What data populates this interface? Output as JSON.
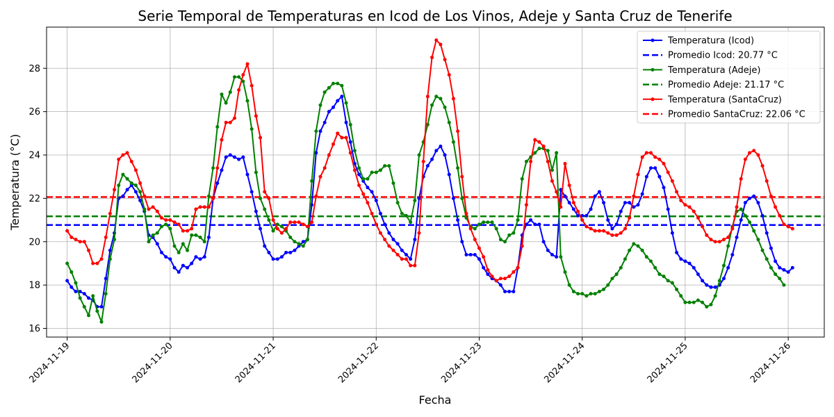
{
  "chart_data": {
    "type": "line",
    "title": "Serie Temporal de Temperaturas en Icod de Los Vinos, Adeje y Santa Cruz de Tenerife",
    "xlabel": "Fecha",
    "ylabel": "Temperatura (°C)",
    "x_tick_labels": [
      "2024-11-19",
      "2024-11-20",
      "2024-11-21",
      "2024-11-22",
      "2024-11-23",
      "2024-11-24",
      "2024-11-25",
      "2024-11-26"
    ],
    "y_ticks": [
      16,
      18,
      20,
      22,
      24,
      26,
      28
    ],
    "xlim": [
      "2024-11-18T19:12",
      "2024-11-26T08:24"
    ],
    "ylim": [
      15.6,
      29.9
    ],
    "grid": true,
    "legend_position": "top-right",
    "legend_entries": [
      "Temperatura (Icod)",
      "Promedio Icod: 20.77 °C",
      "Temperatura (Adeje)",
      "Promedio Adeje: 21.17 °C",
      "Temperatura (SantaCruz)",
      "Promedio SantaCruz: 22.06 °C"
    ],
    "series": [
      {
        "name": "Temperatura (Icod)",
        "color": "#0000ff",
        "start": "2024-11-19T00:00",
        "interval_hours": 1,
        "values": [
          18.2,
          17.9,
          17.7,
          17.7,
          17.6,
          17.4,
          17.3,
          17.0,
          17.0,
          18.3,
          19.6,
          20.4,
          22.0,
          22.1,
          22.4,
          22.6,
          22.3,
          21.9,
          21.4,
          20.3,
          20.2,
          19.9,
          19.5,
          19.3,
          19.2,
          18.8,
          18.6,
          18.9,
          18.8,
          19.0,
          19.3,
          19.2,
          19.3,
          20.2,
          22.0,
          22.7,
          23.3,
          23.9,
          24.0,
          23.9,
          23.8,
          23.9,
          23.1,
          22.3,
          21.4,
          20.6,
          19.8,
          19.5,
          19.2,
          19.2,
          19.3,
          19.5,
          19.5,
          19.6,
          19.8,
          20.0,
          20.1,
          21.7,
          24.1,
          25.1,
          25.5,
          26.0,
          26.2,
          26.5,
          26.7,
          25.5,
          24.6,
          23.6,
          23.1,
          22.8,
          22.5,
          22.3,
          21.9,
          21.3,
          20.8,
          20.4,
          20.1,
          19.9,
          19.6,
          19.4,
          19.2,
          20.1,
          22.0,
          23.0,
          23.5,
          23.8,
          24.2,
          24.4,
          24.0,
          23.1,
          22.0,
          21.0,
          20.0,
          19.4,
          19.4,
          19.4,
          19.2,
          18.8,
          18.5,
          18.3,
          18.2,
          18.0,
          17.7,
          17.7,
          17.7,
          18.8,
          20.3,
          20.8,
          21.0,
          20.8,
          20.8,
          20.0,
          19.6,
          19.4,
          19.3,
          22.4,
          22.1,
          21.8,
          21.5,
          21.2,
          21.2,
          21.2,
          21.5,
          22.1,
          22.3,
          21.8,
          21.0,
          20.6,
          20.8,
          21.4,
          21.8,
          21.8,
          21.6,
          21.7,
          22.2,
          23.0,
          23.4,
          23.4,
          23.0,
          22.5,
          21.5,
          20.4,
          19.5,
          19.2,
          19.1,
          19.0,
          18.8,
          18.5,
          18.2,
          18.0,
          17.9,
          17.9,
          18.0,
          18.3,
          18.8,
          19.4,
          20.2,
          21.0,
          21.8,
          22.0,
          22.1,
          21.8,
          21.2,
          20.4,
          19.7,
          19.1,
          18.8,
          18.7,
          18.6,
          18.8
        ]
      },
      {
        "name": "Temperatura (Adeje)",
        "color": "#008000",
        "start": "2024-11-19T00:00",
        "interval_hours": 1,
        "values": [
          19.0,
          18.6,
          18.1,
          17.4,
          17.0,
          16.6,
          17.5,
          16.8,
          16.3,
          17.6,
          19.2,
          20.1,
          22.6,
          23.1,
          22.9,
          22.7,
          22.6,
          22.3,
          21.5,
          20.0,
          20.3,
          20.4,
          20.7,
          20.8,
          20.6,
          19.8,
          19.5,
          19.9,
          19.6,
          20.3,
          20.3,
          20.2,
          20.0,
          22.1,
          23.4,
          25.3,
          26.8,
          26.4,
          26.9,
          27.6,
          27.6,
          27.4,
          26.5,
          25.2,
          23.2,
          22.0,
          21.5,
          21.0,
          20.5,
          20.8,
          20.7,
          20.5,
          20.2,
          20.0,
          19.9,
          19.8,
          20.1,
          22.8,
          25.1,
          26.3,
          26.9,
          27.1,
          27.3,
          27.3,
          27.2,
          26.4,
          25.4,
          24.2,
          23.4,
          22.9,
          22.9,
          23.2,
          23.2,
          23.3,
          23.5,
          23.5,
          22.7,
          21.8,
          21.3,
          21.2,
          20.9,
          21.9,
          24.0,
          24.6,
          25.4,
          26.3,
          26.7,
          26.6,
          26.2,
          25.5,
          24.6,
          23.4,
          22.0,
          21.1,
          20.7,
          20.6,
          20.8,
          20.9,
          20.9,
          20.9,
          20.6,
          20.1,
          20.0,
          20.3,
          20.4,
          21.0,
          22.9,
          23.7,
          23.9,
          24.1,
          24.3,
          24.3,
          24.2,
          23.3,
          24.1,
          19.3,
          18.6,
          18.0,
          17.7,
          17.6,
          17.6,
          17.5,
          17.6,
          17.6,
          17.7,
          17.8,
          18.0,
          18.3,
          18.5,
          18.8,
          19.2,
          19.6,
          19.9,
          19.8,
          19.6,
          19.3,
          19.1,
          18.8,
          18.5,
          18.4,
          18.2,
          18.1,
          17.8,
          17.5,
          17.2,
          17.2,
          17.2,
          17.3,
          17.2,
          17.0,
          17.1,
          17.5,
          18.2,
          18.9,
          19.8,
          20.7,
          21.4,
          21.5,
          21.2,
          20.9,
          20.5,
          20.1,
          19.6,
          19.2,
          18.8,
          18.5,
          18.3,
          18.0
        ]
      },
      {
        "name": "Temperatura (SantaCruz)",
        "color": "#ff0000",
        "start": "2024-11-19T00:00",
        "interval_hours": 1,
        "values": [
          20.5,
          20.2,
          20.1,
          20.0,
          20.0,
          19.6,
          19.0,
          19.0,
          19.2,
          20.2,
          21.3,
          22.4,
          23.8,
          24.0,
          24.1,
          23.7,
          23.3,
          22.7,
          22.1,
          21.5,
          21.6,
          21.4,
          21.1,
          21.0,
          21.0,
          20.9,
          20.8,
          20.5,
          20.5,
          20.6,
          21.5,
          21.6,
          21.6,
          21.6,
          22.0,
          23.4,
          24.7,
          25.5,
          25.5,
          25.7,
          27.0,
          27.7,
          28.2,
          27.2,
          25.8,
          24.8,
          22.3,
          22.0,
          21.0,
          20.6,
          20.4,
          20.6,
          20.9,
          20.9,
          20.9,
          20.8,
          20.7,
          20.9,
          22.1,
          23.0,
          23.4,
          24.0,
          24.5,
          25.0,
          24.8,
          24.8,
          24.1,
          23.3,
          22.6,
          22.2,
          21.8,
          21.3,
          20.8,
          20.4,
          20.1,
          19.8,
          19.6,
          19.4,
          19.2,
          19.2,
          18.9,
          18.9,
          20.4,
          23.7,
          26.7,
          28.5,
          29.3,
          29.1,
          28.4,
          27.7,
          26.6,
          25.1,
          23.0,
          21.3,
          20.6,
          20.1,
          19.7,
          19.3,
          18.7,
          18.4,
          18.2,
          18.3,
          18.3,
          18.4,
          18.6,
          18.8,
          19.8,
          21.7,
          23.7,
          24.7,
          24.6,
          24.4,
          23.7,
          22.8,
          22.3,
          21.6,
          23.6,
          22.6,
          21.8,
          21.4,
          21.0,
          20.7,
          20.6,
          20.5,
          20.5,
          20.5,
          20.4,
          20.3,
          20.3,
          20.4,
          20.6,
          21.1,
          22.1,
          23.1,
          23.9,
          24.1,
          24.1,
          23.9,
          23.8,
          23.6,
          23.2,
          22.8,
          22.3,
          21.9,
          21.7,
          21.6,
          21.4,
          21.1,
          20.7,
          20.3,
          20.1,
          20.0,
          20.0,
          20.1,
          20.2,
          20.6,
          21.6,
          22.9,
          23.8,
          24.1,
          24.2,
          24.0,
          23.5,
          22.8,
          22.1,
          21.6,
          21.2,
          20.8,
          20.7,
          20.6
        ]
      }
    ],
    "averages": [
      {
        "name": "Promedio Icod: 20.77 °C",
        "value": 20.77,
        "color": "#0000ff"
      },
      {
        "name": "Promedio Adeje: 21.17 °C",
        "value": 21.17,
        "color": "#008000"
      },
      {
        "name": "Promedio SantaCruz: 22.06 °C",
        "value": 22.06,
        "color": "#ff0000"
      }
    ]
  }
}
